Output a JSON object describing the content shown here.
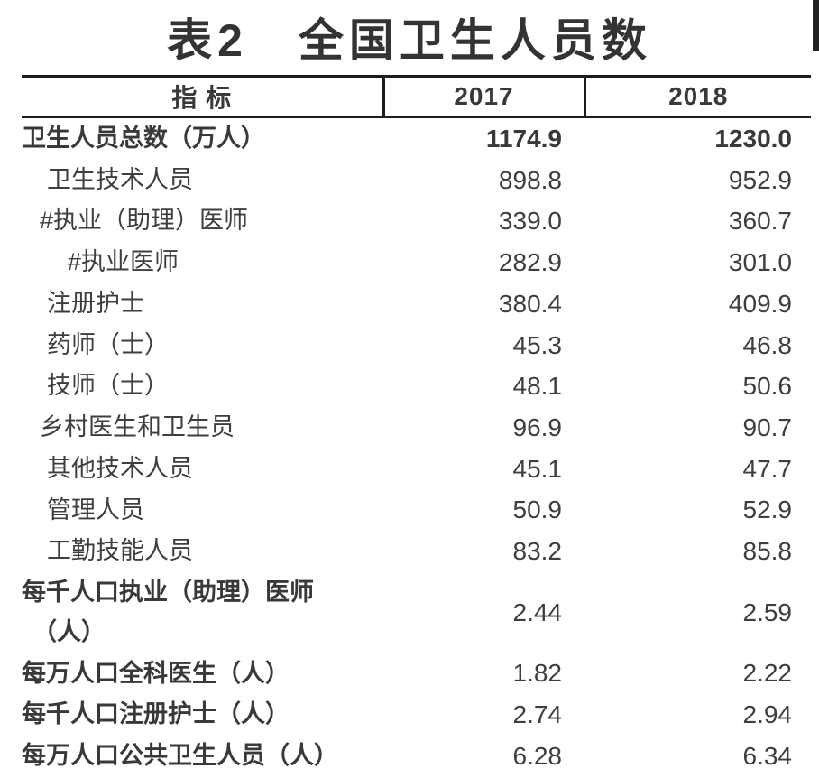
{
  "chart_data": {
    "type": "table",
    "title": "表2　全国卫生人员数",
    "columns": [
      "指 标",
      "2017",
      "2018"
    ],
    "rows": [
      {
        "label": "卫生人员总数（万人）",
        "v2017": "1174.9",
        "v2018": "1230.0",
        "indent": 0,
        "bold_label": true,
        "bold_values": true
      },
      {
        "label": "卫生技术人员",
        "v2017": "898.8",
        "v2018": "952.9",
        "indent": 2
      },
      {
        "label": "#执业（助理）医师",
        "v2017": "339.0",
        "v2018": "360.7",
        "indent": 1
      },
      {
        "label": "#执业医师",
        "v2017": "282.9",
        "v2018": "301.0",
        "indent": 3
      },
      {
        "label": "注册护士",
        "v2017": "380.4",
        "v2018": "409.9",
        "indent": 2
      },
      {
        "label": "药师（士）",
        "v2017": "45.3",
        "v2018": "46.8",
        "indent": 2
      },
      {
        "label": "技师（士）",
        "v2017": "48.1",
        "v2018": "50.6",
        "indent": 2
      },
      {
        "label": "乡村医生和卫生员",
        "v2017": "96.9",
        "v2018": "90.7",
        "indent": 1
      },
      {
        "label": "其他技术人员",
        "v2017": "45.1",
        "v2018": "47.7",
        "indent": 2
      },
      {
        "label": "管理人员",
        "v2017": "50.9",
        "v2018": "52.9",
        "indent": 2
      },
      {
        "label": "工勤技能人员",
        "v2017": "83.2",
        "v2018": "85.8",
        "indent": 2
      },
      {
        "label": "每千人口执业（助理）医师",
        "label_line2": "（人）",
        "v2017": "2.44",
        "v2018": "2.59",
        "indent": 0,
        "bold_label": true,
        "wrap": true
      },
      {
        "label": "每万人口全科医生（人）",
        "v2017": "1.82",
        "v2018": "2.22",
        "indent": 0,
        "bold_label": true
      },
      {
        "label": "每千人口注册护士（人）",
        "v2017": "2.74",
        "v2018": "2.94",
        "indent": 0,
        "bold_label": true
      },
      {
        "label": "每万人口公共卫生人员（人）",
        "v2017": "6.28",
        "v2018": "6.34",
        "indent": 0,
        "bold_label": true
      }
    ],
    "layout": {
      "header_dividers": true,
      "body_dividers": false,
      "value_alignment": "right"
    }
  },
  "colors": {
    "background": "#ffffff",
    "border": "#1d1d1d",
    "text": "#3e3e41",
    "title_text": "#333336"
  }
}
